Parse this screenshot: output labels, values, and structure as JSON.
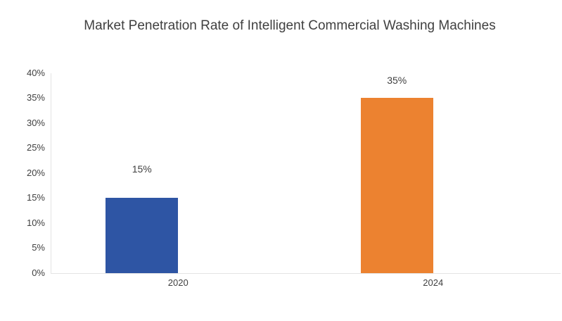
{
  "chart_data": {
    "type": "bar",
    "title": "Market Penetration Rate of Intelligent Commercial Washing Machines",
    "categories": [
      "2020",
      "2024"
    ],
    "values": [
      15,
      35
    ],
    "data_labels": [
      "15%",
      "35%"
    ],
    "bar_colors": [
      "#2E55A4",
      "#EC8230"
    ],
    "y_ticks": [
      "0%",
      "5%",
      "10%",
      "15%",
      "20%",
      "25%",
      "30%",
      "35%",
      "40%"
    ],
    "ylim": [
      0,
      40
    ],
    "xlabel": "",
    "ylabel": "",
    "grid": false,
    "legend": "none",
    "axis_color": "#E4E4E4",
    "text_color": "#404040",
    "background_color": "#FFFFFF"
  }
}
